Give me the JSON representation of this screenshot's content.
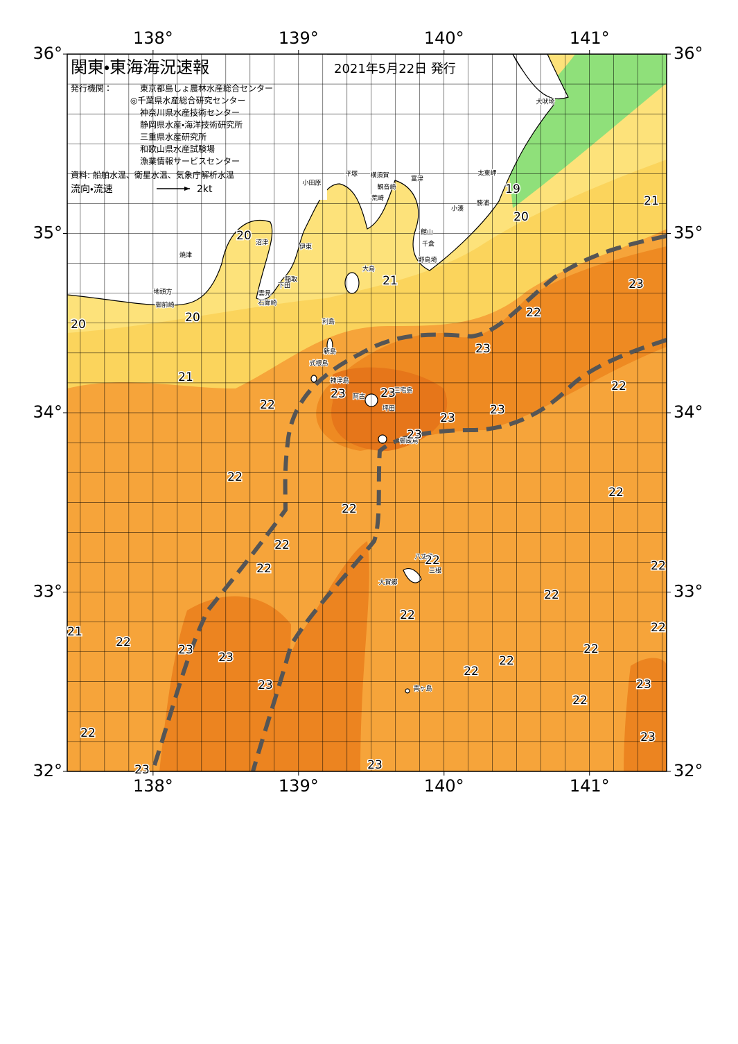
{
  "header": {
    "title": "関東・東海海況速報",
    "date": "2021年5月22日 発行",
    "issuer_label": "発行機関：",
    "issuers": [
      "東京都島しょ農林水産総合センター",
      "◎千葉県水産総合研究センター",
      "神奈川県水産技術センター",
      "静岡県水産・海洋技術研究所",
      "三重県水産研究所",
      "和歌山県水産試験場",
      "漁業情報サービスセンター"
    ],
    "sources": "資料: 船舶水温、衛星水温、気象庁解析水温",
    "flow_legend": "流向・流速",
    "flow_scale": "2kt"
  },
  "map": {
    "xlim": [
      137.41,
      141.53
    ],
    "ylim": [
      32,
      36
    ],
    "xticks": [
      {
        "value": 138,
        "label": "138°"
      },
      {
        "value": 139,
        "label": "139°"
      },
      {
        "value": 140,
        "label": "140°"
      },
      {
        "value": 141,
        "label": "141°"
      }
    ],
    "yticks": [
      {
        "value": 32,
        "label": "32°"
      },
      {
        "value": 33,
        "label": "33°"
      },
      {
        "value": 34,
        "label": "34°"
      },
      {
        "value": 35,
        "label": "35°"
      },
      {
        "value": 36,
        "label": "36°"
      }
    ],
    "isotherm_labels": [
      20,
      19,
      21,
      20,
      21,
      23,
      20,
      20,
      22,
      23,
      21,
      22,
      23,
      23,
      23,
      22,
      23,
      23,
      22,
      22,
      22,
      22,
      22,
      22,
      22,
      22,
      21,
      22,
      22,
      22,
      23,
      23,
      22,
      22,
      22,
      23,
      23,
      22,
      22,
      23,
      23,
      23
    ],
    "place_names": [
      "犬吠埼",
      "太東岬",
      "勝浦",
      "小湊",
      "富津",
      "館山",
      "千倉",
      "野島埼",
      "横須賀",
      "観音崎",
      "平塚",
      "小田原",
      "荒崎",
      "伊東",
      "沼津",
      "焼津",
      "大島",
      "稲取",
      "下田",
      "雲見",
      "石廊崎",
      "地頭方",
      "御前崎",
      "利島",
      "新島",
      "式根島",
      "神津島",
      "三宅島",
      "阿古",
      "坪田",
      "御蔵島",
      "八丈島",
      "三根",
      "大賀郷",
      "青ヶ島"
    ]
  }
}
